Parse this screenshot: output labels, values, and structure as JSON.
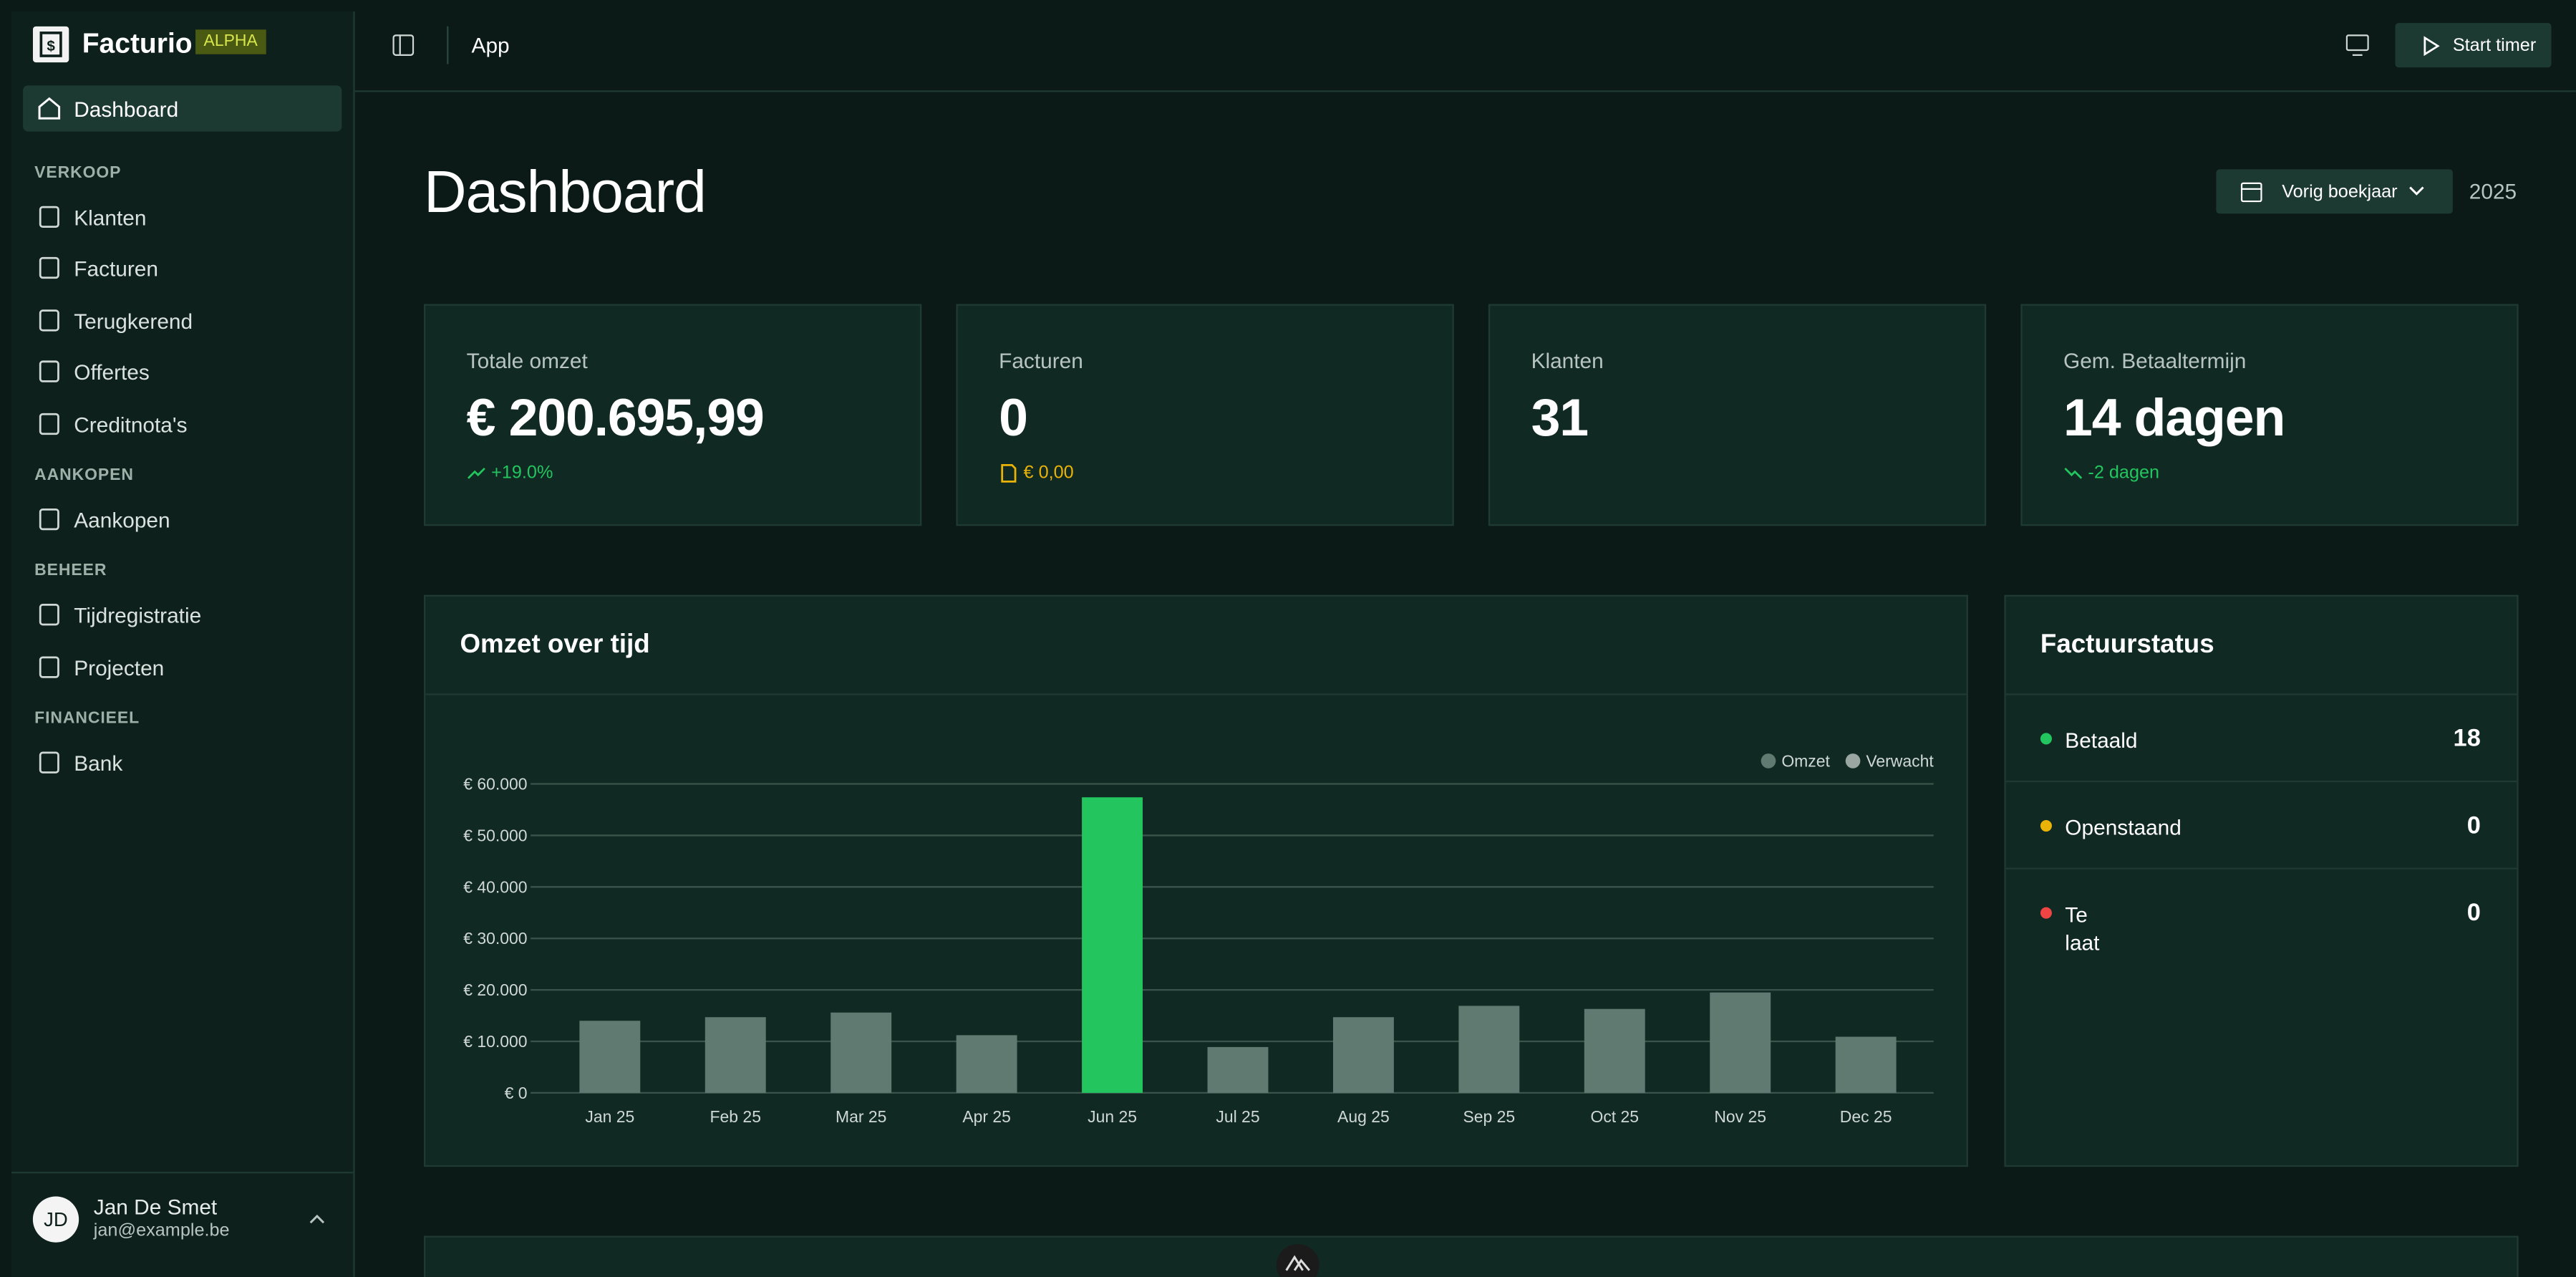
{
  "sidebar": {
    "brand": "Facturio",
    "badge": "ALPHA",
    "home": "Dashboard",
    "sections": [
      {
        "title": "VERKOOP",
        "items": [
          "Klanten",
          "Facturen",
          "Terugkerend",
          "Offertes",
          "Creditnota's"
        ]
      },
      {
        "title": "AANKOPEN",
        "items": [
          "Aankopen"
        ]
      },
      {
        "title": "BEHEER",
        "items": [
          "Tijdregistratie",
          "Projecten"
        ]
      },
      {
        "title": "FINANCIEEL",
        "items": [
          "Bank"
        ]
      }
    ],
    "user": {
      "initials": "JD",
      "name": "Jan De Smet",
      "email": "jan@example.be"
    }
  },
  "topbar": {
    "breadcrumb": "App",
    "button": "Start timer"
  },
  "page": {
    "title": "Dashboard",
    "period": "Vorig boekjaar",
    "year": "2025"
  },
  "stats": [
    {
      "label": "Totale omzet",
      "value": "€ 200.695,99",
      "note": "+19.0%"
    },
    {
      "label": "Facturen",
      "value": "0",
      "note": "€ 0,00"
    },
    {
      "label": "Klanten",
      "value": "31"
    },
    {
      "label": "Gem. Betaaltermijn",
      "value": "14 dagen",
      "note": "-2 dagen"
    }
  ],
  "status": {
    "title": "Factuurstatus",
    "rows": [
      {
        "label": "Betaald",
        "count": 18,
        "color": "#22c55e"
      },
      {
        "label": "Openstaand",
        "count": 0,
        "color": "#eab308"
      },
      {
        "label": "Te laat",
        "count": 0,
        "color": "#ef4444"
      }
    ]
  },
  "chart_data": {
    "type": "bar",
    "title": "Omzet over tijd",
    "categories": [
      "Jan 25",
      "Feb 25",
      "Mar 25",
      "Apr 25",
      "Jun 25",
      "Jul 25",
      "Aug 25",
      "Sep 25",
      "Oct 25",
      "Nov 25",
      "Dec 25"
    ],
    "series": [
      {
        "name": "Omzet",
        "color": "#607a71",
        "colors": [
          "#607a71",
          "#607a71",
          "#607a71",
          "#607a71",
          "#22c55e",
          "#607a71",
          "#607a71",
          "#607a71",
          "#607a71",
          "#607a71",
          "#607a71"
        ],
        "values": [
          14000,
          14700,
          15600,
          11200,
          57400,
          8900,
          14700,
          16900,
          16300,
          19500,
          10900
        ]
      },
      {
        "name": "Verwacht",
        "color": "#9aa6a1",
        "values": [
          null,
          null,
          null,
          null,
          null,
          null,
          null,
          null,
          null,
          null,
          null
        ]
      }
    ],
    "ylim": [
      0,
      60000
    ],
    "yticks": [
      {
        "value": 0,
        "label": "€ 0"
      },
      {
        "value": 10000,
        "label": "€ 10.000"
      },
      {
        "value": 20000,
        "label": "€ 20.000"
      },
      {
        "value": 30000,
        "label": "€ 30.000"
      },
      {
        "value": 40000,
        "label": "€ 40.000"
      },
      {
        "value": 50000,
        "label": "€ 50.000"
      },
      {
        "value": 60000,
        "label": "€ 60.000"
      }
    ],
    "grid": true,
    "legend": "top-right"
  }
}
